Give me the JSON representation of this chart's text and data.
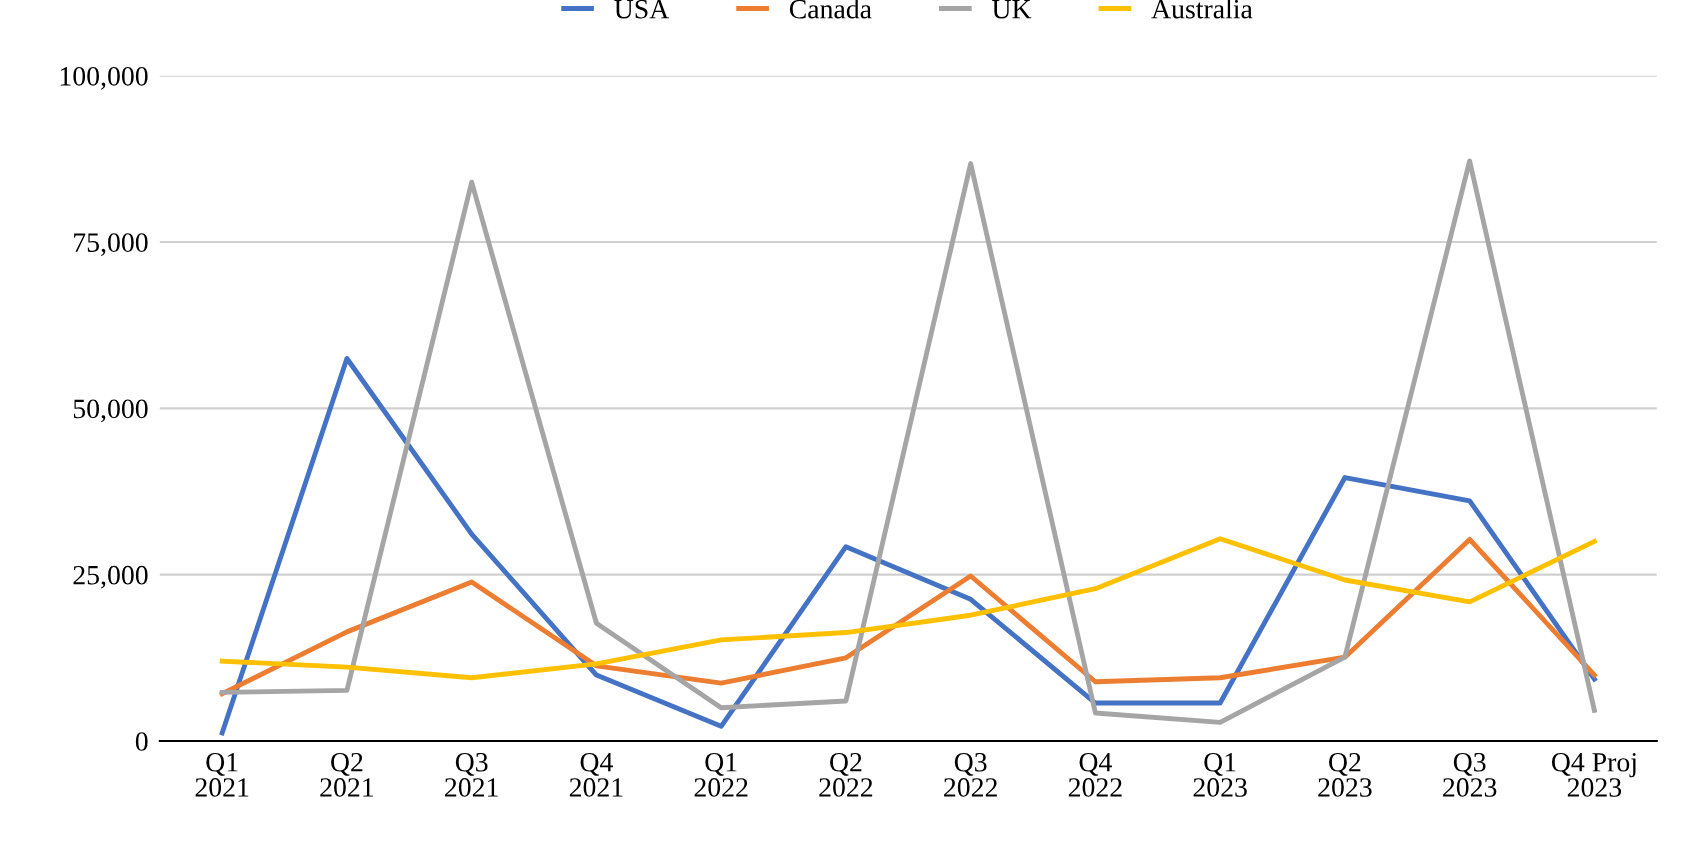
{
  "chart_data": {
    "type": "line",
    "categories": [
      "Q1\n2021",
      "Q2\n2021",
      "Q3\n2021",
      "Q4\n2021",
      "Q1\n2022",
      "Q2\n2022",
      "Q3\n2022",
      "Q4\n2022",
      "Q1\n2023",
      "Q2\n2023",
      "Q3\n2023",
      "Q4 Proj\n2023"
    ],
    "series": [
      {
        "name": "USA",
        "color": "#4472c4",
        "values": [
          1200,
          57500,
          31100,
          9900,
          2200,
          29200,
          21300,
          5700,
          5700,
          39600,
          36100,
          9300
        ]
      },
      {
        "name": "Canada",
        "color": "#ed7d31",
        "values": [
          7100,
          16400,
          23900,
          11300,
          8700,
          12500,
          24800,
          8900,
          9500,
          12600,
          30300,
          9900
        ]
      },
      {
        "name": "UK",
        "color": "#a5a5a5",
        "values": [
          7300,
          7600,
          84000,
          17700,
          5000,
          6000,
          86800,
          4200,
          2800,
          12600,
          87200,
          4600
        ]
      },
      {
        "name": "Australia",
        "color": "#ffc000",
        "values": [
          12000,
          11100,
          9500,
          11600,
          15200,
          16300,
          18900,
          22900,
          30400,
          24200,
          20900,
          30000
        ]
      }
    ],
    "ylim": [
      0,
      100000
    ],
    "yticks": [
      {
        "value": 0,
        "label": "0"
      },
      {
        "value": 25000,
        "label": "25,000"
      },
      {
        "value": 50000,
        "label": "50,000"
      },
      {
        "value": 75000,
        "label": "75,000"
      },
      {
        "value": 100000,
        "label": "100,000"
      }
    ],
    "grid": "y",
    "legend": "top",
    "marker": "none",
    "line_style": "solid"
  }
}
